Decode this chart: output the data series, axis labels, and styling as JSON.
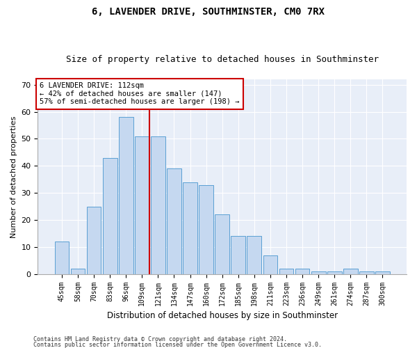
{
  "title": "6, LAVENDER DRIVE, SOUTHMINSTER, CM0 7RX",
  "subtitle": "Size of property relative to detached houses in Southminster",
  "xlabel": "Distribution of detached houses by size in Southminster",
  "ylabel": "Number of detached properties",
  "categories": [
    "45sqm",
    "58sqm",
    "70sqm",
    "83sqm",
    "96sqm",
    "109sqm",
    "121sqm",
    "134sqm",
    "147sqm",
    "160sqm",
    "172sqm",
    "185sqm",
    "198sqm",
    "211sqm",
    "223sqm",
    "236sqm",
    "249sqm",
    "261sqm",
    "274sqm",
    "287sqm",
    "300sqm"
  ],
  "values": [
    12,
    2,
    25,
    43,
    58,
    51,
    51,
    39,
    34,
    33,
    22,
    14,
    14,
    7,
    2,
    2,
    1,
    1,
    2,
    1,
    1
  ],
  "bar_color": "#c5d8f0",
  "bar_edge_color": "#5a9fd4",
  "vline_color": "#cc0000",
  "annotation_text": "6 LAVENDER DRIVE: 112sqm\n← 42% of detached houses are smaller (147)\n57% of semi-detached houses are larger (198) →",
  "annotation_box_color": "#ffffff",
  "annotation_box_edge": "#cc0000",
  "ylim": [
    0,
    72
  ],
  "yticks": [
    0,
    10,
    20,
    30,
    40,
    50,
    60,
    70
  ],
  "footer1": "Contains HM Land Registry data © Crown copyright and database right 2024.",
  "footer2": "Contains public sector information licensed under the Open Government Licence v3.0.",
  "plot_bg_color": "#e8eef8",
  "title_fontsize": 10,
  "subtitle_fontsize": 9,
  "tick_fontsize": 7,
  "ylabel_fontsize": 8,
  "xlabel_fontsize": 8.5,
  "footer_fontsize": 6
}
